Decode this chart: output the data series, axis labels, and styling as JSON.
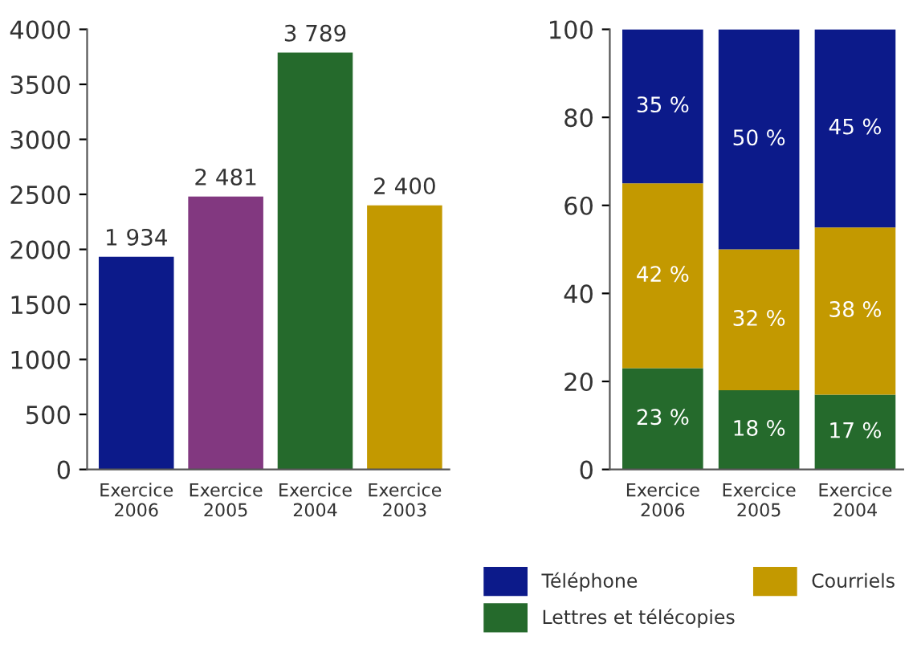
{
  "chart_data": [
    {
      "type": "bar",
      "categories": [
        "Exercice\n2006",
        "Exercice\n2005",
        "Exercice\n2004",
        "Exercice\n2003"
      ],
      "values": [
        1934,
        2481,
        3789,
        2400
      ],
      "colors": [
        "#0c1a8a",
        "#823880",
        "#256a2c",
        "#c39900"
      ],
      "value_labels": [
        "1 934",
        "2 481",
        "3 789",
        "2 400"
      ],
      "ylim": [
        0,
        4000
      ],
      "yticks": [
        0,
        500,
        1000,
        1500,
        2000,
        2500,
        3000,
        3500,
        4000
      ],
      "grid": false,
      "legend": false
    },
    {
      "type": "bar",
      "stacked": true,
      "categories": [
        "Exercice\n2006",
        "Exercice\n2005",
        "Exercice\n2004"
      ],
      "series": [
        {
          "name": "Lettres et télécopies",
          "color": "#256a2c",
          "values": [
            23,
            18,
            17
          ],
          "value_labels": [
            "23 %",
            "18 %",
            "17 %"
          ]
        },
        {
          "name": "Courriels",
          "color": "#c39900",
          "values": [
            42,
            32,
            38
          ],
          "value_labels": [
            "42 %",
            "32 %",
            "38 %"
          ]
        },
        {
          "name": "Téléphone",
          "color": "#0c1a8a",
          "values": [
            35,
            50,
            45
          ],
          "value_labels": [
            "35 %",
            "50 %",
            "45 %"
          ]
        }
      ],
      "ylim": [
        0,
        100
      ],
      "yticks": [
        0,
        20,
        40,
        60,
        80,
        100
      ],
      "grid": false,
      "legend": "bottom"
    }
  ]
}
